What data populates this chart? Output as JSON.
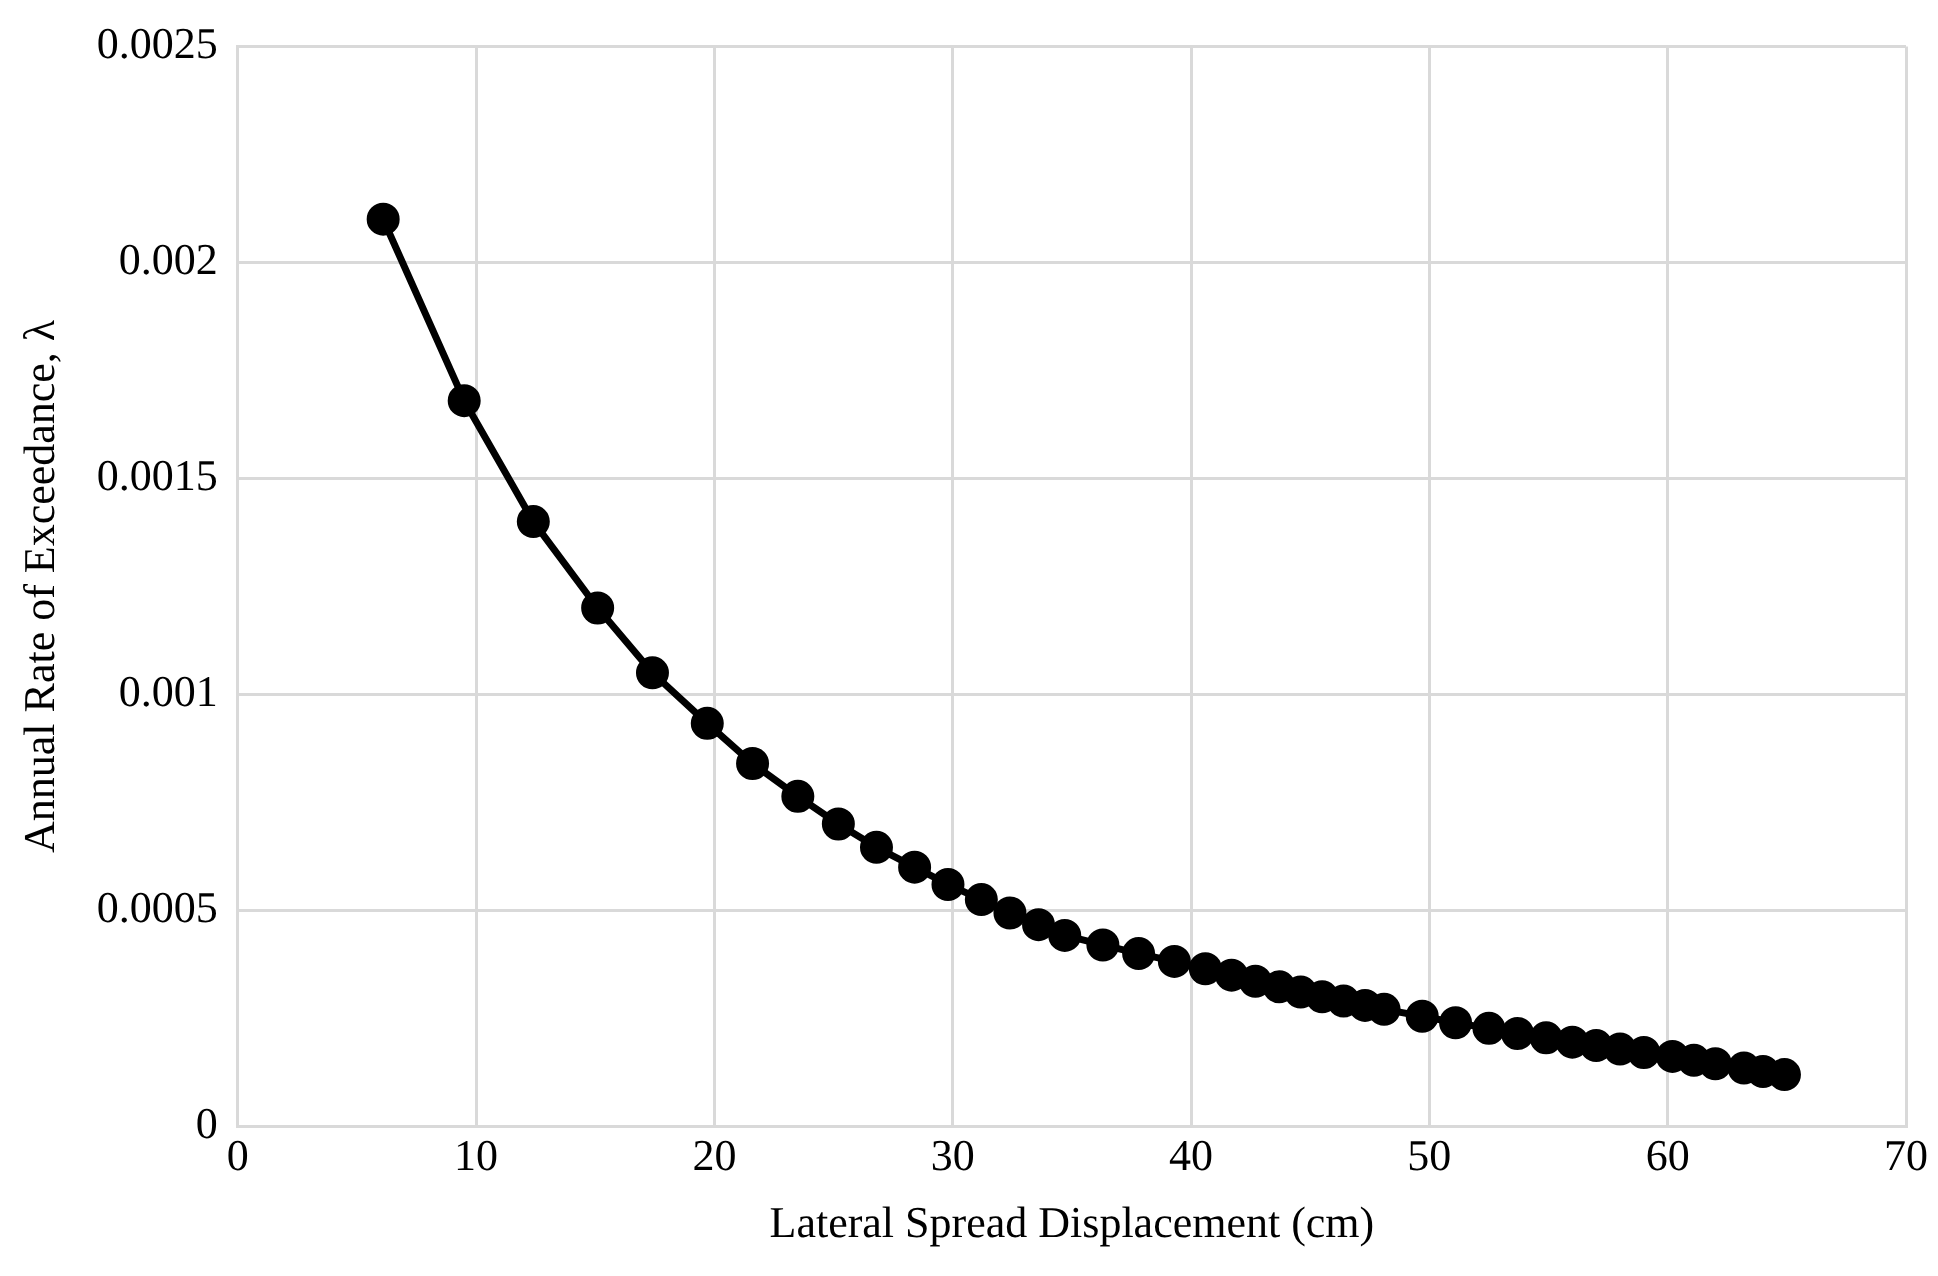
{
  "chart_data": {
    "type": "line",
    "xlabel": "Lateral Spread Displacement (cm)",
    "ylabel": "Annual Rate of Exceedance, λ",
    "xlim": [
      0,
      70
    ],
    "xticks": [
      0,
      10,
      20,
      30,
      40,
      50,
      60,
      70
    ],
    "ylim": [
      0,
      0.0025
    ],
    "yticks": [
      0,
      0.0005,
      0.001,
      0.0015,
      0.002,
      0.0025
    ],
    "grid": true,
    "legend": false,
    "marker": "circle",
    "line_style": "solid",
    "series": [
      {
        "color": "#000000",
        "x": [
          6.1,
          9.5,
          12.4,
          15.1,
          17.4,
          19.7,
          21.6,
          23.5,
          25.2,
          26.8,
          28.4,
          29.8,
          31.2,
          32.4,
          33.6,
          34.7,
          36.3,
          37.8,
          39.3,
          40.6,
          41.7,
          42.7,
          43.7,
          44.6,
          45.5,
          46.4,
          47.3,
          48.1,
          49.7,
          51.1,
          52.5,
          53.7,
          54.9,
          56.0,
          57.0,
          58.0,
          59.0,
          60.2,
          61.1,
          62.0,
          63.2,
          64.0,
          64.9
        ],
        "values": [
          0.0021,
          0.00168,
          0.0014,
          0.0012,
          0.00105,
          0.000933,
          0.00084,
          0.000764,
          0.0007,
          0.000646,
          0.0006,
          0.00056,
          0.000525,
          0.000494,
          0.000467,
          0.000442,
          0.00042,
          0.0004,
          0.000382,
          0.000365,
          0.00035,
          0.000336,
          0.000323,
          0.000311,
          0.0003,
          0.00029,
          0.00028,
          0.000271,
          0.000255,
          0.00024,
          0.000227,
          0.000215,
          0.000205,
          0.000195,
          0.000187,
          0.000179,
          0.000171,
          0.000162,
          0.000153,
          0.000145,
          0.000135,
          0.000127,
          0.00012
        ]
      }
    ]
  }
}
